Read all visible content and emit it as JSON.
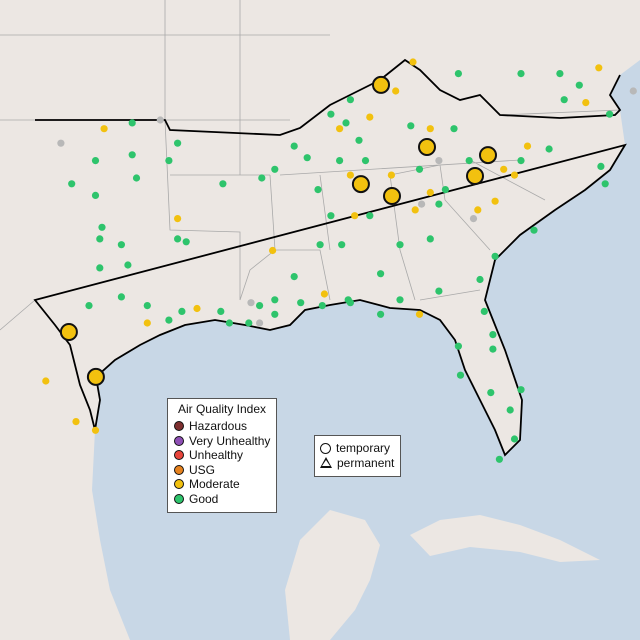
{
  "map": {
    "colors": {
      "land": "#ece7e3",
      "water": "#c8d7e6",
      "state_lines": "#a9a9a9",
      "region_outline": "#000000"
    },
    "projection_note": "points given as longitude/latitude"
  },
  "legend_aqi": {
    "title": "Air Quality Index",
    "items": [
      {
        "label": "Hazardous",
        "color": "#7e2f2f"
      },
      {
        "label": "Very Unhealthy",
        "color": "#8e4fb5"
      },
      {
        "label": "Unhealthy",
        "color": "#e8453c"
      },
      {
        "label": "USG",
        "color": "#e6821e"
      },
      {
        "label": "Moderate",
        "color": "#f2c10f"
      },
      {
        "label": "Good",
        "color": "#2ec46c"
      }
    ]
  },
  "legend_type": {
    "items": [
      {
        "label": "temporary",
        "shape": "circle"
      },
      {
        "label": "permanent",
        "shape": "triangle"
      }
    ]
  },
  "monitors": {
    "large_temporary_moderate": [
      [
        -86.98,
        38.21
      ],
      [
        -84.85,
        36.07
      ],
      [
        -82.03,
        35.79
      ],
      [
        -82.63,
        35.07
      ],
      [
        -87.91,
        34.79
      ],
      [
        -86.47,
        34.38
      ],
      [
        -101.43,
        29.69
      ],
      [
        -100.18,
        28.14
      ]
    ],
    "good": [
      [
        -100.2,
        35.6
      ],
      [
        -100.2,
        34.4
      ],
      [
        -101.3,
        34.8
      ],
      [
        -98.5,
        36.9
      ],
      [
        -98.5,
        35.8
      ],
      [
        -96.4,
        36.2
      ],
      [
        -96.8,
        35.6
      ],
      [
        -98.3,
        35.0
      ],
      [
        -94.3,
        34.8
      ],
      [
        -99.9,
        33.3
      ],
      [
        -100.0,
        32.9
      ],
      [
        -99.0,
        32.7
      ],
      [
        -96.4,
        32.9
      ],
      [
        -96.0,
        32.8
      ],
      [
        -100.0,
        31.9
      ],
      [
        -98.7,
        32.0
      ],
      [
        -100.5,
        30.6
      ],
      [
        -99.0,
        30.9
      ],
      [
        -97.8,
        30.6
      ],
      [
        -96.2,
        30.4
      ],
      [
        -96.8,
        30.1
      ],
      [
        -94.4,
        30.4
      ],
      [
        -92.6,
        30.6
      ],
      [
        -91.9,
        30.3
      ],
      [
        -92.5,
        35.0
      ],
      [
        -91.9,
        35.3
      ],
      [
        -91.0,
        36.1
      ],
      [
        -90.4,
        35.7
      ],
      [
        -88.6,
        36.9
      ],
      [
        -88.4,
        37.7
      ],
      [
        -89.3,
        37.2
      ],
      [
        -88.0,
        36.3
      ],
      [
        -89.9,
        34.6
      ],
      [
        -89.3,
        33.7
      ],
      [
        -89.8,
        32.7
      ],
      [
        -91.0,
        31.6
      ],
      [
        -88.8,
        32.7
      ],
      [
        -87.5,
        33.7
      ],
      [
        -86.1,
        32.7
      ],
      [
        -87.0,
        31.7
      ],
      [
        -86.1,
        30.8
      ],
      [
        -84.3,
        31.1
      ],
      [
        -88.5,
        30.8
      ],
      [
        -87.0,
        30.3
      ],
      [
        -84.7,
        32.9
      ],
      [
        -84.3,
        34.1
      ],
      [
        -82.9,
        35.6
      ],
      [
        -83.6,
        36.7
      ],
      [
        -83.4,
        38.6
      ],
      [
        -80.5,
        38.6
      ],
      [
        -78.7,
        38.6
      ],
      [
        -78.5,
        37.7
      ],
      [
        -77.8,
        38.2
      ],
      [
        -76.4,
        37.2
      ],
      [
        -76.8,
        35.4
      ],
      [
        -76.6,
        34.8
      ],
      [
        -79.2,
        36.0
      ],
      [
        -80.5,
        35.6
      ],
      [
        -79.9,
        33.2
      ],
      [
        -81.7,
        32.3
      ],
      [
        -82.2,
        30.4
      ],
      [
        -82.4,
        31.5
      ],
      [
        -81.8,
        29.6
      ],
      [
        -83.4,
        29.2
      ],
      [
        -81.8,
        29.1
      ],
      [
        -83.3,
        28.2
      ],
      [
        -81.9,
        27.6
      ],
      [
        -80.5,
        27.7
      ],
      [
        -81.0,
        27.0
      ],
      [
        -80.8,
        26.0
      ],
      [
        -81.5,
        25.3
      ],
      [
        -85.2,
        35.3
      ],
      [
        -84.0,
        34.6
      ],
      [
        -85.6,
        36.8
      ],
      [
        -88.9,
        35.6
      ],
      [
        -87.7,
        35.6
      ],
      [
        -90.7,
        30.7
      ],
      [
        -89.7,
        30.6
      ],
      [
        -88.4,
        30.7
      ],
      [
        -91.9,
        30.8
      ],
      [
        -93.1,
        30.0
      ],
      [
        -94.0,
        30.0
      ]
    ],
    "moderate": [
      [
        -99.8,
        36.7
      ],
      [
        -96.4,
        33.6
      ],
      [
        -92.0,
        32.5
      ],
      [
        -95.5,
        30.5
      ],
      [
        -97.8,
        30.0
      ],
      [
        -102.5,
        28.0
      ],
      [
        -101.1,
        26.6
      ],
      [
        -100.2,
        26.3
      ],
      [
        -85.5,
        39.0
      ],
      [
        -87.5,
        37.1
      ],
      [
        -86.3,
        38.0
      ],
      [
        -84.7,
        36.7
      ],
      [
        -88.4,
        35.1
      ],
      [
        -88.2,
        33.7
      ],
      [
        -86.5,
        35.1
      ],
      [
        -85.4,
        33.9
      ],
      [
        -84.7,
        34.5
      ],
      [
        -82.5,
        33.9
      ],
      [
        -81.7,
        34.2
      ],
      [
        -80.2,
        36.1
      ],
      [
        -80.8,
        35.1
      ],
      [
        -77.5,
        37.6
      ],
      [
        -76.9,
        38.8
      ],
      [
        -89.6,
        31.0
      ],
      [
        -85.2,
        30.3
      ],
      [
        -81.3,
        35.3
      ],
      [
        -88.9,
        36.7
      ]
    ],
    "no_data": [
      [
        -101.8,
        36.2
      ],
      [
        -97.2,
        37.0
      ],
      [
        -93.0,
        30.7
      ],
      [
        -92.6,
        30.0
      ],
      [
        -84.3,
        35.6
      ],
      [
        -85.1,
        34.1
      ],
      [
        -82.7,
        33.6
      ],
      [
        -75.3,
        38.0
      ]
    ],
    "no_data_color": "#b8b8b8"
  }
}
